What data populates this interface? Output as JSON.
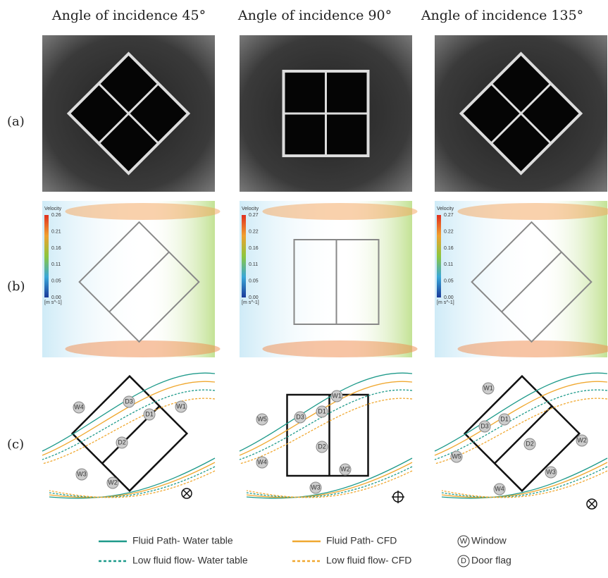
{
  "columns": [
    "Angle of incidence 45°",
    "Angle of incidence 90°",
    "Angle of incidence 135°"
  ],
  "rows": [
    "(a)",
    "(b)",
    "(c)"
  ],
  "colorbars": [
    {
      "title": "Velocity",
      "ticks": [
        "0.26",
        "0.21",
        "0.16",
        "0.11",
        "0.05",
        "0.00"
      ],
      "unit": "[m s^-1]"
    },
    {
      "title": "Velocity",
      "ticks": [
        "0.27",
        "0.22",
        "0.16",
        "0.11",
        "0.05",
        "0.00"
      ],
      "unit": "[m s^-1]"
    },
    {
      "title": "Velocity",
      "ticks": [
        "0.27",
        "0.22",
        "0.16",
        "0.11",
        "0.05",
        "0.00"
      ],
      "unit": "[m s^-1]"
    }
  ],
  "diagrams": [
    {
      "labels": [
        "W4",
        "D3",
        "D1",
        "W1",
        "D2",
        "W3",
        "W2"
      ]
    },
    {
      "labels": [
        "W1",
        "W5",
        "D1",
        "D3",
        "D2",
        "W4",
        "W2",
        "W3"
      ]
    },
    {
      "labels": [
        "W1",
        "D3",
        "D1",
        "W2",
        "D2",
        "W5",
        "W3",
        "W4"
      ]
    }
  ],
  "legend": [
    {
      "text": "Fluid Path- Water table"
    },
    {
      "text": "Fluid Path- CFD"
    },
    {
      "symbol": "W",
      "text": "Window"
    },
    {
      "text": "Low fluid flow- Water table"
    },
    {
      "text": "Low fluid flow- CFD"
    },
    {
      "symbol": "D",
      "text": "Door flag"
    }
  ]
}
